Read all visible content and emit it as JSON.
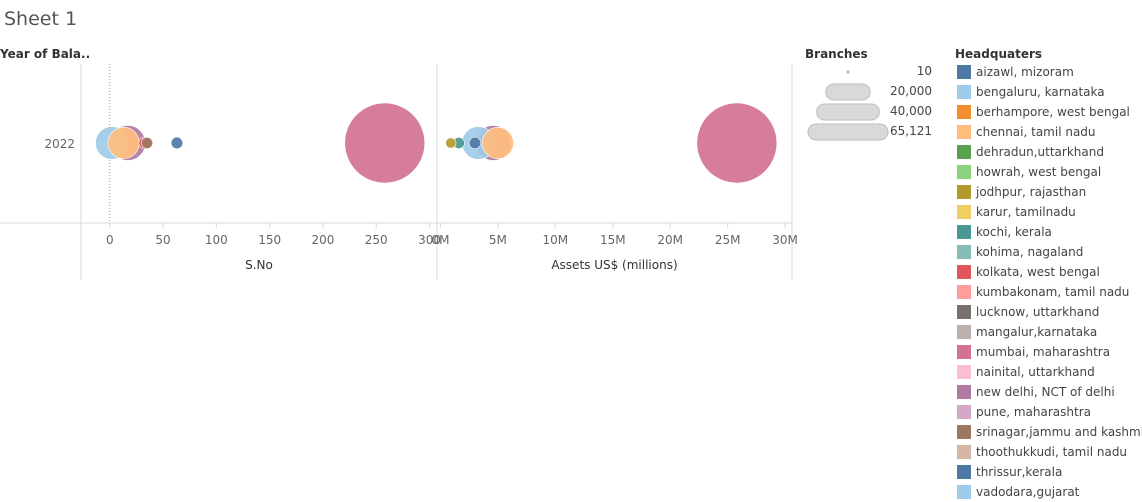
{
  "sheet": {
    "title": "Sheet 1"
  },
  "rows": {
    "header": "Year of Bala.."
  },
  "size_legend": {
    "title": "Branches",
    "entries": [
      {
        "label": "10",
        "value": 10
      },
      {
        "label": "20,000",
        "value": 20000
      },
      {
        "label": "40,000",
        "value": 40000
      },
      {
        "label": "65,121",
        "value": 65121
      }
    ]
  },
  "color_legend": {
    "title": "Headquaters",
    "items": [
      {
        "label": "aizawl, mizoram",
        "color": "#4e79a7"
      },
      {
        "label": "bengaluru, karnataka",
        "color": "#a0cbe8"
      },
      {
        "label": "berhampore, west bengal",
        "color": "#f28e2b"
      },
      {
        "label": "chennai, tamil nadu",
        "color": "#ffbe7d"
      },
      {
        "label": "dehradun,uttarkhand",
        "color": "#59a14f"
      },
      {
        "label": "howrah, west bengal",
        "color": "#8cd17d"
      },
      {
        "label": "jodhpur, rajasthan",
        "color": "#b6992d"
      },
      {
        "label": "karur, tamilnadu",
        "color": "#f1ce63"
      },
      {
        "label": "kochi, kerala",
        "color": "#499894"
      },
      {
        "label": "kohima, nagaland",
        "color": "#86bcb6"
      },
      {
        "label": "kolkata, west bengal",
        "color": "#e15759"
      },
      {
        "label": "kumbakonam, tamil nadu",
        "color": "#ff9d9a"
      },
      {
        "label": "lucknow, uttarkhand",
        "color": "#79706e"
      },
      {
        "label": "mangalur,karnataka",
        "color": "#bab0ac"
      },
      {
        "label": "mumbai, maharashtra",
        "color": "#d37295"
      },
      {
        "label": "nainital, uttarkhand",
        "color": "#fabfd2"
      },
      {
        "label": "new delhi, NCT of delhi",
        "color": "#b07aa1"
      },
      {
        "label": "pune, maharashtra",
        "color": "#d4a6c8"
      },
      {
        "label": "srinagar,jammu and kashmir",
        "color": "#9d7660"
      },
      {
        "label": "thoothukkudi, tamil nadu",
        "color": "#d7b5a6"
      },
      {
        "label": "thrissur,kerala",
        "color": "#4e79a7"
      },
      {
        "label": "vadodara,gujarat",
        "color": "#a0cbe8"
      }
    ]
  },
  "chart_data": [
    {
      "type": "scatter",
      "xlabel": "S.No",
      "ylabel": "",
      "row_label": "2022",
      "xlim": [
        -27,
        307
      ],
      "xticks": [
        0,
        50,
        100,
        150,
        200,
        250,
        300
      ],
      "tick_labels": [
        "0",
        "50",
        "100",
        "150",
        "200",
        "250",
        "300"
      ],
      "grid": false,
      "zero_line": true,
      "points": [
        {
          "hq": "mumbai, maharashtra",
          "x": 258,
          "branches": 65121
        },
        {
          "hq": "aizawl, mizoram",
          "x": 63,
          "branches": 1400
        },
        {
          "hq": "srinagar,jammu and kashmir",
          "x": 35,
          "branches": 1300
        },
        {
          "hq": "kolkata, west bengal",
          "x": 33,
          "branches": 1500
        },
        {
          "hq": "new delhi, NCT of delhi",
          "x": 17,
          "branches": 12500
        },
        {
          "hq": "chennai, tamil nadu",
          "x": 13,
          "branches": 10000
        },
        {
          "hq": "bengaluru, karnataka",
          "x": 2,
          "branches": 11000
        }
      ]
    },
    {
      "type": "scatter",
      "xlabel": "Assets US$ (millions)",
      "ylabel": "",
      "row_label": "2022",
      "xlim": [
        -0.3,
        30.6
      ],
      "xticks": [
        0,
        5,
        10,
        15,
        20,
        25,
        30
      ],
      "tick_labels": [
        "0M",
        "5M",
        "10M",
        "15M",
        "20M",
        "25M",
        "30M"
      ],
      "grid": false,
      "zero_line": false,
      "points": [
        {
          "hq": "mumbai, maharashtra",
          "x": 25.8,
          "branches": 65121
        },
        {
          "hq": "chennai, tamil nadu",
          "x": 5.0,
          "branches": 10000
        },
        {
          "hq": "new delhi, NCT of delhi",
          "x": 4.6,
          "branches": 12500
        },
        {
          "hq": "bengaluru, karnataka",
          "x": 3.3,
          "branches": 11000
        },
        {
          "hq": "aizawl, mizoram",
          "x": 3.0,
          "branches": 1400
        },
        {
          "hq": "kochi, kerala",
          "x": 1.6,
          "branches": 1300
        },
        {
          "hq": "jodhpur, rajasthan",
          "x": 0.9,
          "branches": 1100
        }
      ]
    }
  ]
}
